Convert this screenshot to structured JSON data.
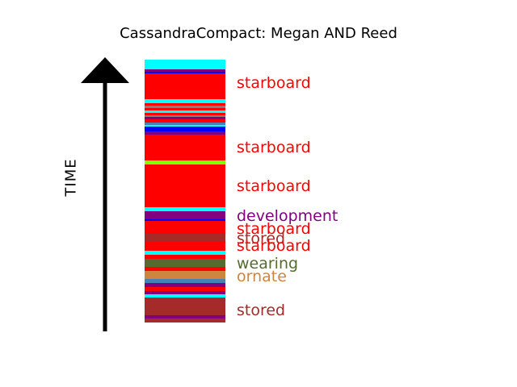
{
  "title": "CassandraCompact: Megan AND Reed",
  "time_label": "TIME",
  "stack": [
    {
      "c": "#00ffff",
      "h": 12
    },
    {
      "c": "#800080",
      "h": 3
    },
    {
      "c": "#0000ff",
      "h": 2
    },
    {
      "c": "#ff0000",
      "h": 32
    },
    {
      "c": "#00ffff",
      "h": 5
    },
    {
      "c": "#ff0000",
      "h": 3
    },
    {
      "c": "#808080",
      "h": 3
    },
    {
      "c": "#ff0000",
      "h": 3
    },
    {
      "c": "#00ffff",
      "h": 3
    },
    {
      "c": "#ff0000",
      "h": 3
    },
    {
      "c": "#808080",
      "h": 2
    },
    {
      "c": "#800080",
      "h": 3
    },
    {
      "c": "#ff0000",
      "h": 4
    },
    {
      "c": "#4682b4",
      "h": 3
    },
    {
      "c": "#00ffff",
      "h": 2
    },
    {
      "c": "#0000ff",
      "h": 6
    },
    {
      "c": "#800080",
      "h": 4
    },
    {
      "c": "#ff0000",
      "h": 32
    },
    {
      "c": "#7fff00",
      "h": 5
    },
    {
      "c": "#ff0000",
      "h": 53
    },
    {
      "c": "#00ffff",
      "h": 5
    },
    {
      "c": "#800080",
      "h": 10
    },
    {
      "c": "#0000ff",
      "h": 2
    },
    {
      "c": "#ff0000",
      "h": 16
    },
    {
      "c": "#a52a2a",
      "h": 10
    },
    {
      "c": "#ff0000",
      "h": 11
    },
    {
      "c": "#00ffff",
      "h": 5
    },
    {
      "c": "#ff0000",
      "h": 5
    },
    {
      "c": "#556b2f",
      "h": 10
    },
    {
      "c": "#ff0000",
      "h": 5
    },
    {
      "c": "#cd853f",
      "h": 10
    },
    {
      "c": "#4682b4",
      "h": 5
    },
    {
      "c": "#800080",
      "h": 5
    },
    {
      "c": "#ff0000",
      "h": 5
    },
    {
      "c": "#800080",
      "h": 4
    },
    {
      "c": "#00ffff",
      "h": 4
    },
    {
      "c": "#a52a2a",
      "h": 22
    },
    {
      "c": "#800080",
      "h": 4
    },
    {
      "c": "#a52a2a",
      "h": 5
    }
  ],
  "labels": [
    {
      "text": "starboard",
      "color": "#ff0000"
    },
    {
      "text": "starboard",
      "color": "#ff0000"
    },
    {
      "text": "starboard",
      "color": "#ff0000"
    },
    {
      "text": "development",
      "color": "#800080"
    },
    {
      "text": "starboard",
      "color": "#ff0000"
    },
    {
      "text": "stored",
      "color": "#a52a2a"
    },
    {
      "text": "starboard",
      "color": "#ff0000"
    },
    {
      "text": "wearing",
      "color": "#556b2f"
    },
    {
      "text": "ornate",
      "color": "#cd853f"
    },
    {
      "text": "stored",
      "color": "#a52a2a"
    }
  ]
}
